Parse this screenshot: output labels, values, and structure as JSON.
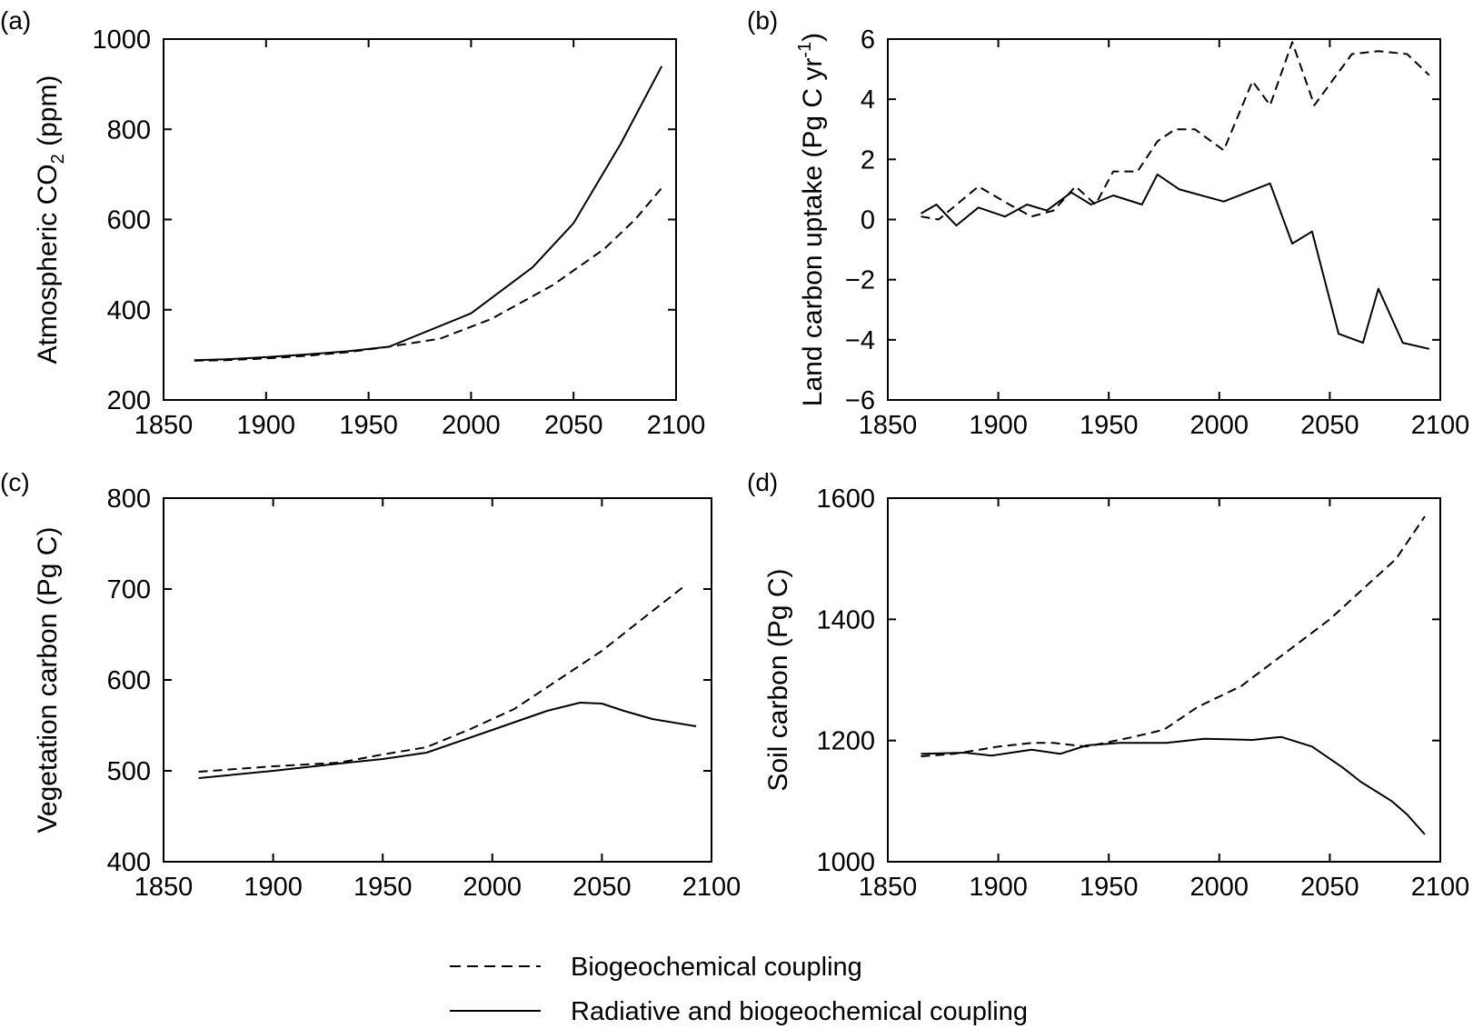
{
  "chart_data": [
    {
      "panel_tag": "(a)",
      "type": "line",
      "ylabel": "Atmospheric CO",
      "ylabel_sub": "2",
      "ylabel_tail": " (ppm)",
      "xlim": [
        1850,
        2100
      ],
      "ylim": [
        200,
        1000
      ],
      "xticks": [
        1850,
        1900,
        1950,
        2000,
        2050,
        2100
      ],
      "yticks": [
        200,
        400,
        600,
        800,
        1000
      ],
      "series": [
        {
          "style": "dashed",
          "x": [
            1865,
            1880,
            1900,
            1920,
            1940,
            1960,
            1985,
            2010,
            2040,
            2065,
            2080,
            2093
          ],
          "y": [
            287,
            288,
            292,
            298,
            306,
            318,
            336,
            380,
            455,
            535,
            600,
            670
          ]
        },
        {
          "style": "solid",
          "x": [
            1865,
            1880,
            1900,
            1920,
            1940,
            1960,
            2000,
            2030,
            2050,
            2073,
            2093
          ],
          "y": [
            288,
            290,
            295,
            301,
            308,
            318,
            392,
            494,
            592,
            768,
            940
          ]
        }
      ]
    },
    {
      "panel_tag": "(b)",
      "type": "line",
      "ylabel": "Land carbon uptake (Pg C yr",
      "ylabel_sup": "-1",
      "ylabel_tail": ")",
      "xlim": [
        1850,
        2100
      ],
      "ylim": [
        -6,
        6
      ],
      "xticks": [
        1850,
        1900,
        1950,
        2000,
        2050,
        2100
      ],
      "yticks": [
        -6,
        -4,
        -2,
        0,
        2,
        4,
        6
      ],
      "ytick_labels": [
        "−6",
        "−4",
        "−2",
        "0",
        "2",
        "4",
        "6"
      ],
      "series": [
        {
          "style": "dashed",
          "x": [
            1865,
            1873,
            1891,
            1905,
            1915,
            1925,
            1935,
            1944,
            1952,
            1963,
            1972,
            1980,
            1989,
            2002,
            2015,
            2023,
            2033,
            2043,
            2060,
            2072,
            2085,
            2095
          ],
          "y": [
            0.1,
            0.0,
            1.1,
            0.5,
            0.1,
            0.3,
            1.1,
            0.5,
            1.6,
            1.6,
            2.6,
            3.0,
            3.0,
            2.3,
            4.6,
            3.8,
            5.9,
            3.8,
            5.5,
            5.6,
            5.5,
            4.8
          ]
        },
        {
          "style": "solid",
          "x": [
            1865,
            1872,
            1881,
            1891,
            1903,
            1913,
            1922,
            1933,
            1942,
            1952,
            1965,
            1972,
            1982,
            2002,
            2023,
            2033,
            2042,
            2054,
            2065,
            2072,
            2083,
            2095
          ],
          "y": [
            0.2,
            0.5,
            -0.2,
            0.4,
            0.1,
            0.5,
            0.3,
            0.9,
            0.5,
            0.8,
            0.5,
            1.5,
            1.0,
            0.6,
            1.2,
            -0.8,
            -0.4,
            -3.8,
            -4.1,
            -2.3,
            -4.1,
            -4.3
          ]
        }
      ]
    },
    {
      "panel_tag": "(c)",
      "type": "line",
      "ylabel": "Vegetation carbon (Pg C)",
      "xlim": [
        1850,
        2100
      ],
      "ylim": [
        400,
        800
      ],
      "xticks": [
        1850,
        1900,
        1950,
        2000,
        2050,
        2100
      ],
      "yticks": [
        400,
        500,
        600,
        700,
        800
      ],
      "series": [
        {
          "style": "dashed",
          "x": [
            1866,
            1900,
            1930,
            1950,
            1970,
            1990,
            2010,
            2030,
            2050,
            2070,
            2088
          ],
          "y": [
            499,
            505,
            509,
            518,
            526,
            546,
            568,
            600,
            632,
            670,
            704
          ]
        },
        {
          "style": "solid",
          "x": [
            1866,
            1900,
            1930,
            1950,
            1970,
            2000,
            2025,
            2040,
            2050,
            2060,
            2073,
            2093
          ],
          "y": [
            492,
            500,
            508,
            513,
            520,
            545,
            566,
            575,
            574,
            566,
            557,
            549
          ]
        }
      ]
    },
    {
      "panel_tag": "(d)",
      "type": "line",
      "ylabel": "Soil carbon (Pg C)",
      "xlim": [
        1850,
        2100
      ],
      "ylim": [
        1000,
        1600
      ],
      "xticks": [
        1850,
        1900,
        1950,
        2000,
        2050,
        2100
      ],
      "yticks": [
        1000,
        1200,
        1400,
        1600
      ],
      "series": [
        {
          "style": "dashed",
          "x": [
            1865,
            1880,
            1900,
            1915,
            1925,
            1940,
            1960,
            1975,
            1990,
            2010,
            2030,
            2050,
            2068,
            2080,
            2093
          ],
          "y": [
            1174,
            1178,
            1190,
            1196,
            1196,
            1190,
            1205,
            1218,
            1255,
            1290,
            1345,
            1400,
            1460,
            1500,
            1570
          ]
        },
        {
          "style": "solid",
          "x": [
            1865,
            1885,
            1897,
            1915,
            1928,
            1940,
            1955,
            1976,
            1993,
            2003,
            2015,
            2028,
            2042,
            2056,
            2064,
            2078,
            2085,
            2093
          ],
          "y": [
            1178,
            1180,
            1175,
            1185,
            1178,
            1192,
            1196,
            1196,
            1203,
            1202,
            1201,
            1206,
            1190,
            1155,
            1132,
            1100,
            1078,
            1045
          ]
        }
      ]
    }
  ],
  "legend": {
    "items": [
      {
        "style": "dashed",
        "label": "Biogeochemical coupling"
      },
      {
        "style": "solid",
        "label": "Radiative and biogeochemical coupling"
      }
    ]
  }
}
